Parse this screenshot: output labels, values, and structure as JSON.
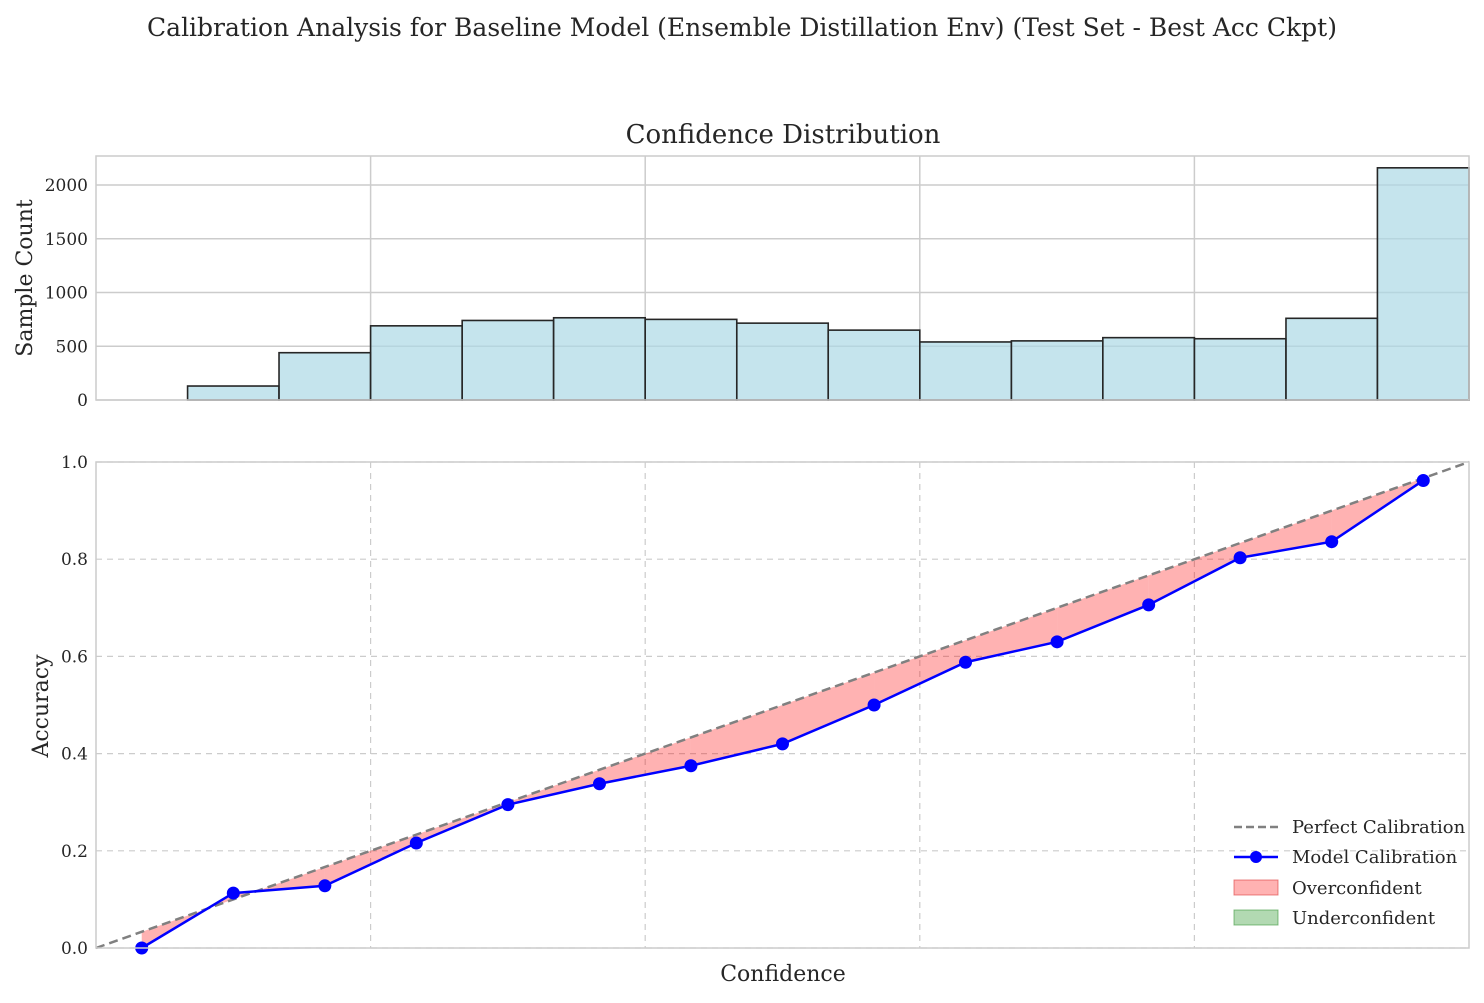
{
  "figure": {
    "suptitle": "Calibration Analysis for Baseline Model (Ensemble Distillation Env) (Test Set - Best Acc Ckpt)"
  },
  "chart_data": [
    {
      "type": "bar",
      "title": "Confidence Distribution",
      "xlabel": "",
      "ylabel": "Sample Count",
      "xlim": [
        0.0,
        1.0
      ],
      "ylim": [
        0,
        2270
      ],
      "yticks": [
        0,
        500,
        1000,
        1500,
        2000
      ],
      "ytick_labels": [
        "0",
        "500",
        "1000",
        "1500",
        "2000"
      ],
      "grid": true,
      "bin_edges": [
        0.0,
        0.0667,
        0.1333,
        0.2,
        0.2667,
        0.3333,
        0.4,
        0.4667,
        0.5333,
        0.6,
        0.6667,
        0.7333,
        0.8,
        0.8667,
        0.9333,
        1.0
      ],
      "values": [
        0,
        130,
        440,
        690,
        740,
        765,
        750,
        715,
        650,
        540,
        550,
        580,
        570,
        760,
        2160
      ],
      "bar_color": "#add8e6",
      "edge_color": "#262626"
    },
    {
      "type": "line",
      "title": "",
      "xlabel": "Confidence",
      "ylabel": "Accuracy",
      "xlim": [
        0.0,
        1.0
      ],
      "ylim": [
        0.0,
        1.0
      ],
      "yticks": [
        0.0,
        0.2,
        0.4,
        0.6,
        0.8,
        1.0
      ],
      "ytick_labels": [
        "0.0",
        "0.2",
        "0.4",
        "0.6",
        "0.8",
        "1.0"
      ],
      "grid": true,
      "legend_position": "bottom-right",
      "series": [
        {
          "name": "Perfect Calibration",
          "style": "dashed",
          "color": "#808080",
          "x": [
            0.0,
            1.0
          ],
          "y": [
            0.0,
            1.0
          ]
        },
        {
          "name": "Model Calibration",
          "style": "line-marker",
          "color": "#0000ff",
          "x": [
            0.0333,
            0.1,
            0.1667,
            0.2333,
            0.3,
            0.3667,
            0.4333,
            0.5,
            0.5667,
            0.6333,
            0.7,
            0.7667,
            0.8333,
            0.9,
            0.9667
          ],
          "y": [
            0.0,
            0.113,
            0.128,
            0.216,
            0.295,
            0.338,
            0.375,
            0.42,
            0.5,
            0.588,
            0.63,
            0.706,
            0.803,
            0.836,
            0.962
          ]
        }
      ],
      "fills": [
        {
          "name": "Overconfident",
          "color": "#ff0000",
          "alpha": 0.3
        },
        {
          "name": "Underconfident",
          "color": "#008000",
          "alpha": 0.3
        }
      ]
    }
  ]
}
